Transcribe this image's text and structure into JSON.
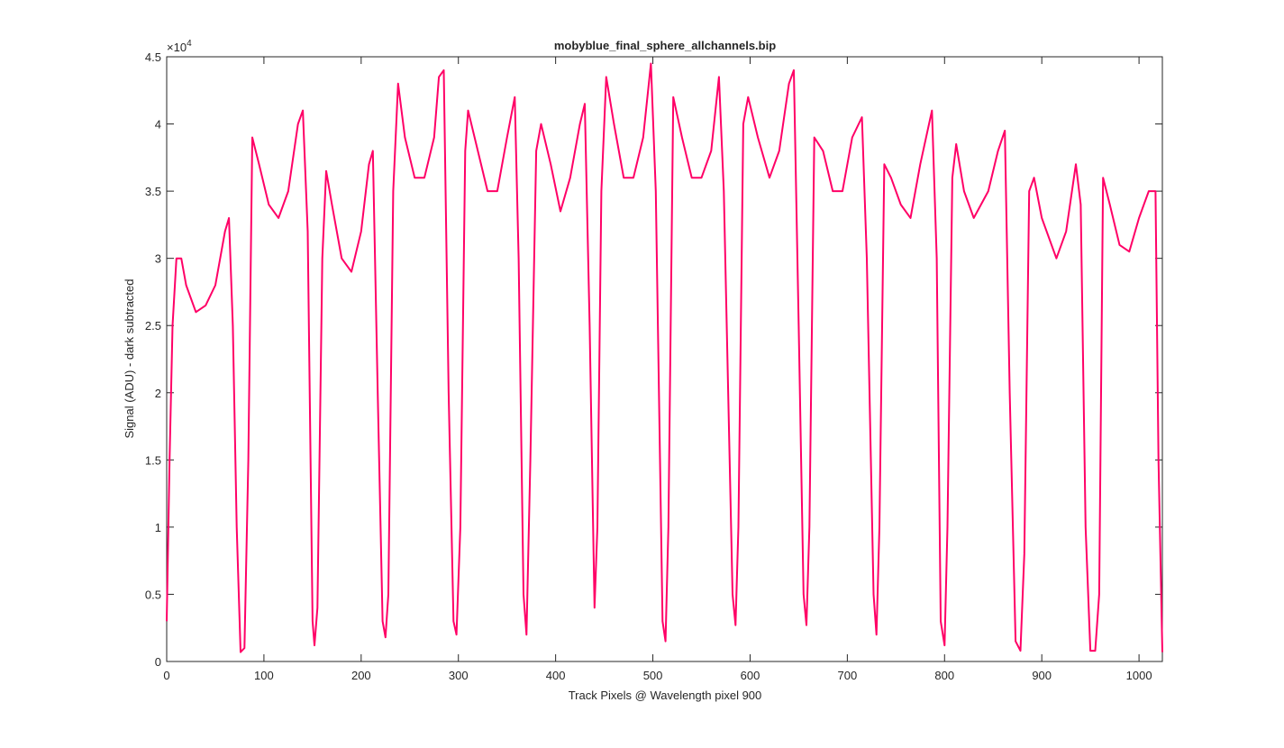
{
  "chart_data": {
    "type": "line",
    "title": "mobyblue_final_sphere_allchannels.bip",
    "x_label": "Track Pixels @ Wavelength pixel 900",
    "y_label": "Signal (ADU) - dark subtracted",
    "y_exponent_base": "×10",
    "y_exponent_power": "4",
    "color": "#ff0066",
    "xlim": [
      0,
      1024
    ],
    "xticks": [
      0,
      100,
      200,
      300,
      400,
      500,
      600,
      700,
      800,
      900,
      1000
    ],
    "ylim": [
      0,
      4.5
    ],
    "yticks": [
      0,
      0.5,
      1,
      1.5,
      2,
      2.5,
      3,
      3.5,
      4,
      4.5
    ],
    "x": [
      0,
      3,
      6,
      10,
      15,
      20,
      30,
      40,
      50,
      60,
      64,
      68,
      72,
      76,
      80,
      84,
      88,
      95,
      105,
      115,
      125,
      135,
      140,
      145,
      150,
      152,
      155,
      160,
      164,
      170,
      180,
      190,
      200,
      208,
      212,
      217,
      222,
      225,
      228,
      233,
      238,
      245,
      255,
      265,
      275,
      280,
      285,
      290,
      295,
      298,
      302,
      307,
      310,
      320,
      330,
      340,
      350,
      358,
      362,
      367,
      370,
      374,
      380,
      385,
      395,
      405,
      415,
      425,
      430,
      435,
      440,
      443,
      447,
      452,
      460,
      470,
      480,
      490,
      498,
      503,
      510,
      513,
      516,
      521,
      530,
      540,
      550,
      560,
      568,
      573,
      582,
      585,
      588,
      593,
      598,
      608,
      620,
      630,
      640,
      645,
      650,
      655,
      658,
      661,
      666,
      675,
      685,
      695,
      705,
      715,
      720,
      727,
      730,
      733,
      738,
      745,
      755,
      765,
      775,
      787,
      792,
      796,
      800,
      803,
      808,
      812,
      820,
      830,
      845,
      855,
      862,
      867,
      873,
      878,
      882,
      887,
      892,
      900,
      915,
      925,
      935,
      940,
      945,
      950,
      955,
      959,
      963,
      970,
      980,
      990,
      1000,
      1010,
      1017,
      1020,
      1024
    ],
    "values": [
      0.3,
      1.5,
      2.5,
      3.0,
      3.0,
      2.8,
      2.6,
      2.65,
      2.8,
      3.2,
      3.3,
      2.5,
      1.0,
      0.07,
      0.1,
      1.5,
      3.9,
      3.7,
      3.4,
      3.3,
      3.5,
      4.0,
      4.1,
      3.2,
      0.3,
      0.12,
      0.4,
      3.0,
      3.65,
      3.4,
      3.0,
      2.9,
      3.2,
      3.7,
      3.8,
      2.0,
      0.3,
      0.18,
      0.5,
      3.5,
      4.3,
      3.9,
      3.6,
      3.6,
      3.9,
      4.35,
      4.4,
      2.0,
      0.3,
      0.2,
      1.0,
      3.8,
      4.1,
      3.8,
      3.5,
      3.5,
      3.9,
      4.2,
      3.0,
      0.5,
      0.2,
      1.5,
      3.8,
      4.0,
      3.7,
      3.35,
      3.6,
      4.0,
      4.15,
      2.5,
      0.4,
      1.0,
      3.5,
      4.35,
      4.0,
      3.6,
      3.6,
      3.9,
      4.45,
      3.5,
      0.3,
      0.15,
      1.0,
      4.2,
      3.9,
      3.6,
      3.6,
      3.8,
      4.35,
      3.5,
      0.5,
      0.27,
      1.0,
      4.0,
      4.2,
      3.9,
      3.6,
      3.8,
      4.3,
      4.4,
      2.5,
      0.5,
      0.27,
      1.0,
      3.9,
      3.8,
      3.5,
      3.5,
      3.9,
      4.05,
      3.0,
      0.5,
      0.2,
      1.0,
      3.7,
      3.6,
      3.4,
      3.3,
      3.7,
      4.1,
      3.0,
      0.3,
      0.12,
      1.0,
      3.6,
      3.85,
      3.5,
      3.3,
      3.5,
      3.8,
      3.95,
      2.0,
      0.15,
      0.08,
      0.8,
      3.5,
      3.6,
      3.3,
      3.0,
      3.2,
      3.7,
      3.4,
      1.0,
      0.08,
      0.08,
      0.5,
      3.6,
      3.4,
      3.1,
      3.05,
      3.3,
      3.5,
      3.5,
      1.5,
      0.07
    ]
  }
}
